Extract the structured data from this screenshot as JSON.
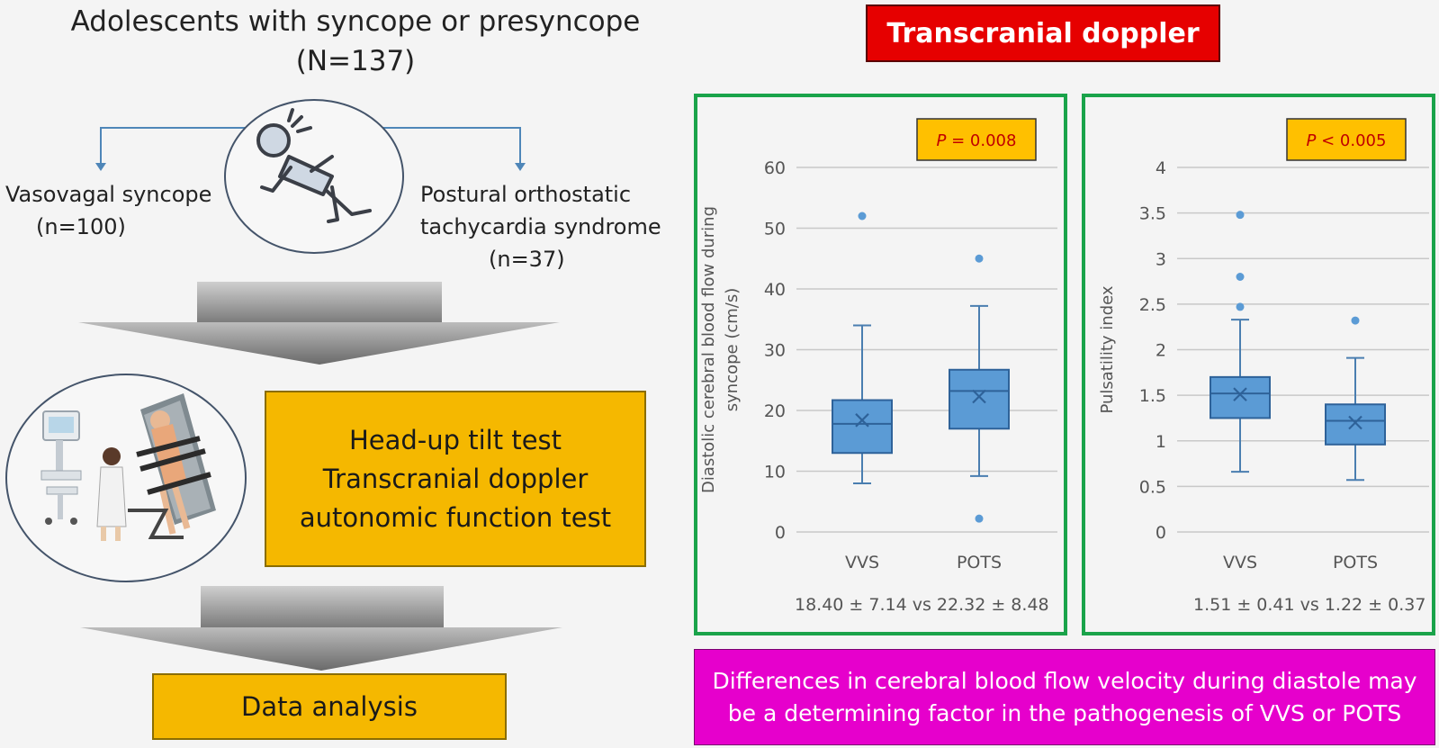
{
  "header": {
    "line1": "Adolescents with syncope or presyncope",
    "line2": "(N=137)"
  },
  "groups": {
    "vvs": {
      "name": "Vasovagal syncope",
      "n": "(n=100)"
    },
    "pots": {
      "line1": "Postural orthostatic",
      "line2": "tachycardia syndrome",
      "n": "(n=37)"
    }
  },
  "tests": {
    "line1": "Head-up tilt test",
    "line2": "Transcranial doppler",
    "line3": "autonomic function test"
  },
  "analysis": {
    "label": "Data analysis"
  },
  "tcd": {
    "title": "Transcranial doppler"
  },
  "conclusion": {
    "line1": "Differences in cerebral blood flow velocity during diastole may",
    "line2": "be a determining factor in the pathogenesis of VVS or POTS"
  },
  "colors": {
    "title_red": "#e60000",
    "panel_green": "#1aa34a",
    "box_blue": "#5b9bd5",
    "highlight_yellow": "#f5b800",
    "conclusion_magenta": "#e600cc"
  },
  "chart_data": [
    {
      "type": "box",
      "ylabel_line1": "Diastolic cerebral blood flow during",
      "ylabel_line2": "syncope (cm/s)",
      "ylim": [
        0,
        60
      ],
      "yticks": [
        "0",
        "10",
        "20",
        "30",
        "40",
        "50",
        "60"
      ],
      "pvalue": {
        "p": "P",
        "rest": " = 0.008"
      },
      "summary": "18.40 ± 7.14 vs 22.32 ± 8.48",
      "categories": [
        "VVS",
        "POTS"
      ],
      "boxes": [
        {
          "min": 8,
          "q1": 13,
          "median": 17.8,
          "mean": 18.4,
          "q3": 21.7,
          "max": 34,
          "outliers": [
            52
          ]
        },
        {
          "min": 9.2,
          "q1": 17,
          "median": 23.2,
          "mean": 22.3,
          "q3": 26.7,
          "max": 37.2,
          "outliers": [
            45,
            2.2
          ]
        }
      ]
    },
    {
      "type": "box",
      "ylabel_line1": "Pulsatility index",
      "ylim": [
        0,
        4
      ],
      "yticks": [
        "0",
        "0.5",
        "1",
        "1.5",
        "2",
        "2.5",
        "3",
        "3.5",
        "4"
      ],
      "pvalue": {
        "p": "P",
        "rest": " < 0.005"
      },
      "summary": "1.51 ± 0.41 vs 1.22 ± 0.37",
      "categories": [
        "VVS",
        "POTS"
      ],
      "boxes": [
        {
          "min": 0.66,
          "q1": 1.25,
          "median": 1.52,
          "mean": 1.51,
          "q3": 1.7,
          "max": 2.33,
          "outliers": [
            3.48,
            2.8,
            2.47
          ]
        },
        {
          "min": 0.57,
          "q1": 0.96,
          "median": 1.22,
          "mean": 1.2,
          "q3": 1.4,
          "max": 1.91,
          "outliers": [
            2.32
          ]
        }
      ]
    }
  ]
}
